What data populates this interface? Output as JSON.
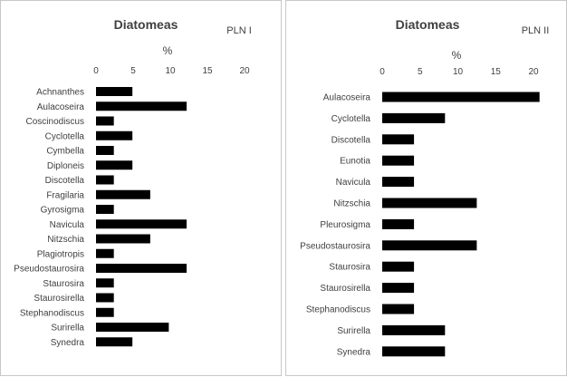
{
  "colors": {
    "bar": "#000000",
    "text": "#404040",
    "border": "#c8c8c8",
    "background": "#ffffff"
  },
  "chart_data": [
    {
      "type": "bar",
      "orientation": "horizontal",
      "title": "Diatomeas",
      "panel_label": "PLN I",
      "unit_label": "%",
      "x_axis_position": "top",
      "xlim": [
        0,
        20
      ],
      "x_ticks": [
        "0",
        "5",
        "10",
        "15",
        "20"
      ],
      "grid": false,
      "legend": "none",
      "categories": [
        "Achnanthes",
        "Aulacoseira",
        "Coscinodiscus",
        "Cyclotella",
        "Cymbella",
        "Diploneis",
        "Discotella",
        "Fragilaria",
        "Gyrosigma",
        "Navicula",
        "Nitzschia",
        "Plagiotropis",
        "Pseudostaurosira",
        "Staurosira",
        "Staurosirella",
        "Stephanodiscus",
        "Surirella",
        "Synedra"
      ],
      "values": [
        4.9,
        12.2,
        2.4,
        4.9,
        2.4,
        4.9,
        2.4,
        7.3,
        2.4,
        12.2,
        7.3,
        2.4,
        12.2,
        2.4,
        2.4,
        2.4,
        9.8,
        4.9
      ]
    },
    {
      "type": "bar",
      "orientation": "horizontal",
      "title": "Diatomeas",
      "panel_label": "PLN II",
      "unit_label": "%",
      "x_axis_position": "top",
      "xlim": [
        0,
        20
      ],
      "x_ticks": [
        "0",
        "5",
        "10",
        "15",
        "20"
      ],
      "grid": false,
      "legend": "none",
      "categories": [
        "Aulacoseira",
        "Cyclotella",
        "Discotella",
        "Eunotia",
        "Navicula",
        "Nitzschia",
        "Pleurosigma",
        "Pseudostaurosira",
        "Staurosira",
        "Staurosirella",
        "Stephanodiscus",
        "Surirella",
        "Synedra"
      ],
      "values": [
        20.8,
        8.3,
        4.2,
        4.2,
        4.2,
        12.5,
        4.2,
        12.5,
        4.2,
        4.2,
        4.2,
        8.3,
        8.3
      ]
    }
  ]
}
